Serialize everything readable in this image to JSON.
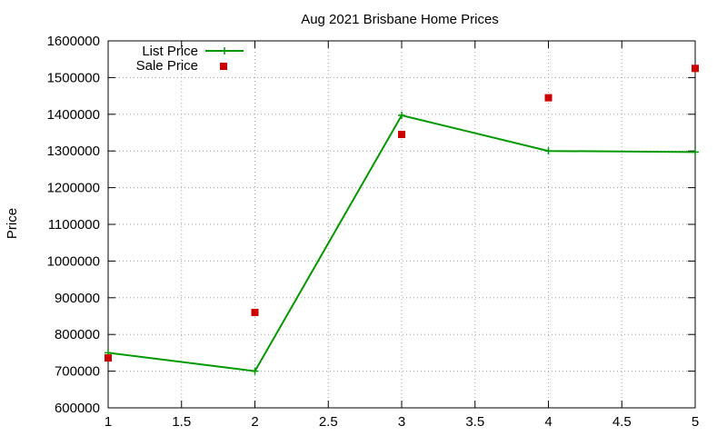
{
  "chart_data": {
    "type": "line",
    "title": "Aug 2021 Brisbane Home Prices",
    "xlabel": "",
    "ylabel": "Price",
    "xlim": [
      1,
      5
    ],
    "ylim": [
      600000,
      1600000
    ],
    "x_ticks": [
      "1",
      "1.5",
      "2",
      "2.5",
      "3",
      "3.5",
      "4",
      "4.5",
      "5"
    ],
    "x_tick_values": [
      1,
      1.5,
      2,
      2.5,
      3,
      3.5,
      4,
      4.5,
      5
    ],
    "y_ticks": [
      "600000",
      "700000",
      "800000",
      "900000",
      "1000000",
      "1100000",
      "1200000",
      "1300000",
      "1400000",
      "1500000",
      "1600000"
    ],
    "y_tick_values": [
      600000,
      700000,
      800000,
      900000,
      1000000,
      1100000,
      1200000,
      1300000,
      1400000,
      1500000,
      1600000
    ],
    "grid": true,
    "legend_position": "top-left",
    "series": [
      {
        "name": "List Price",
        "style": "linespoints",
        "marker": "plus",
        "color": "#009900",
        "x": [
          1,
          2,
          3,
          4,
          5
        ],
        "y": [
          750000,
          700000,
          1397000,
          1300000,
          1297000
        ]
      },
      {
        "name": "Sale Price",
        "style": "points",
        "marker": "square",
        "color": "#cc0000",
        "x": [
          1,
          2,
          3,
          4,
          5
        ],
        "y": [
          736000,
          860000,
          1345000,
          1445000,
          1525000
        ]
      }
    ]
  }
}
